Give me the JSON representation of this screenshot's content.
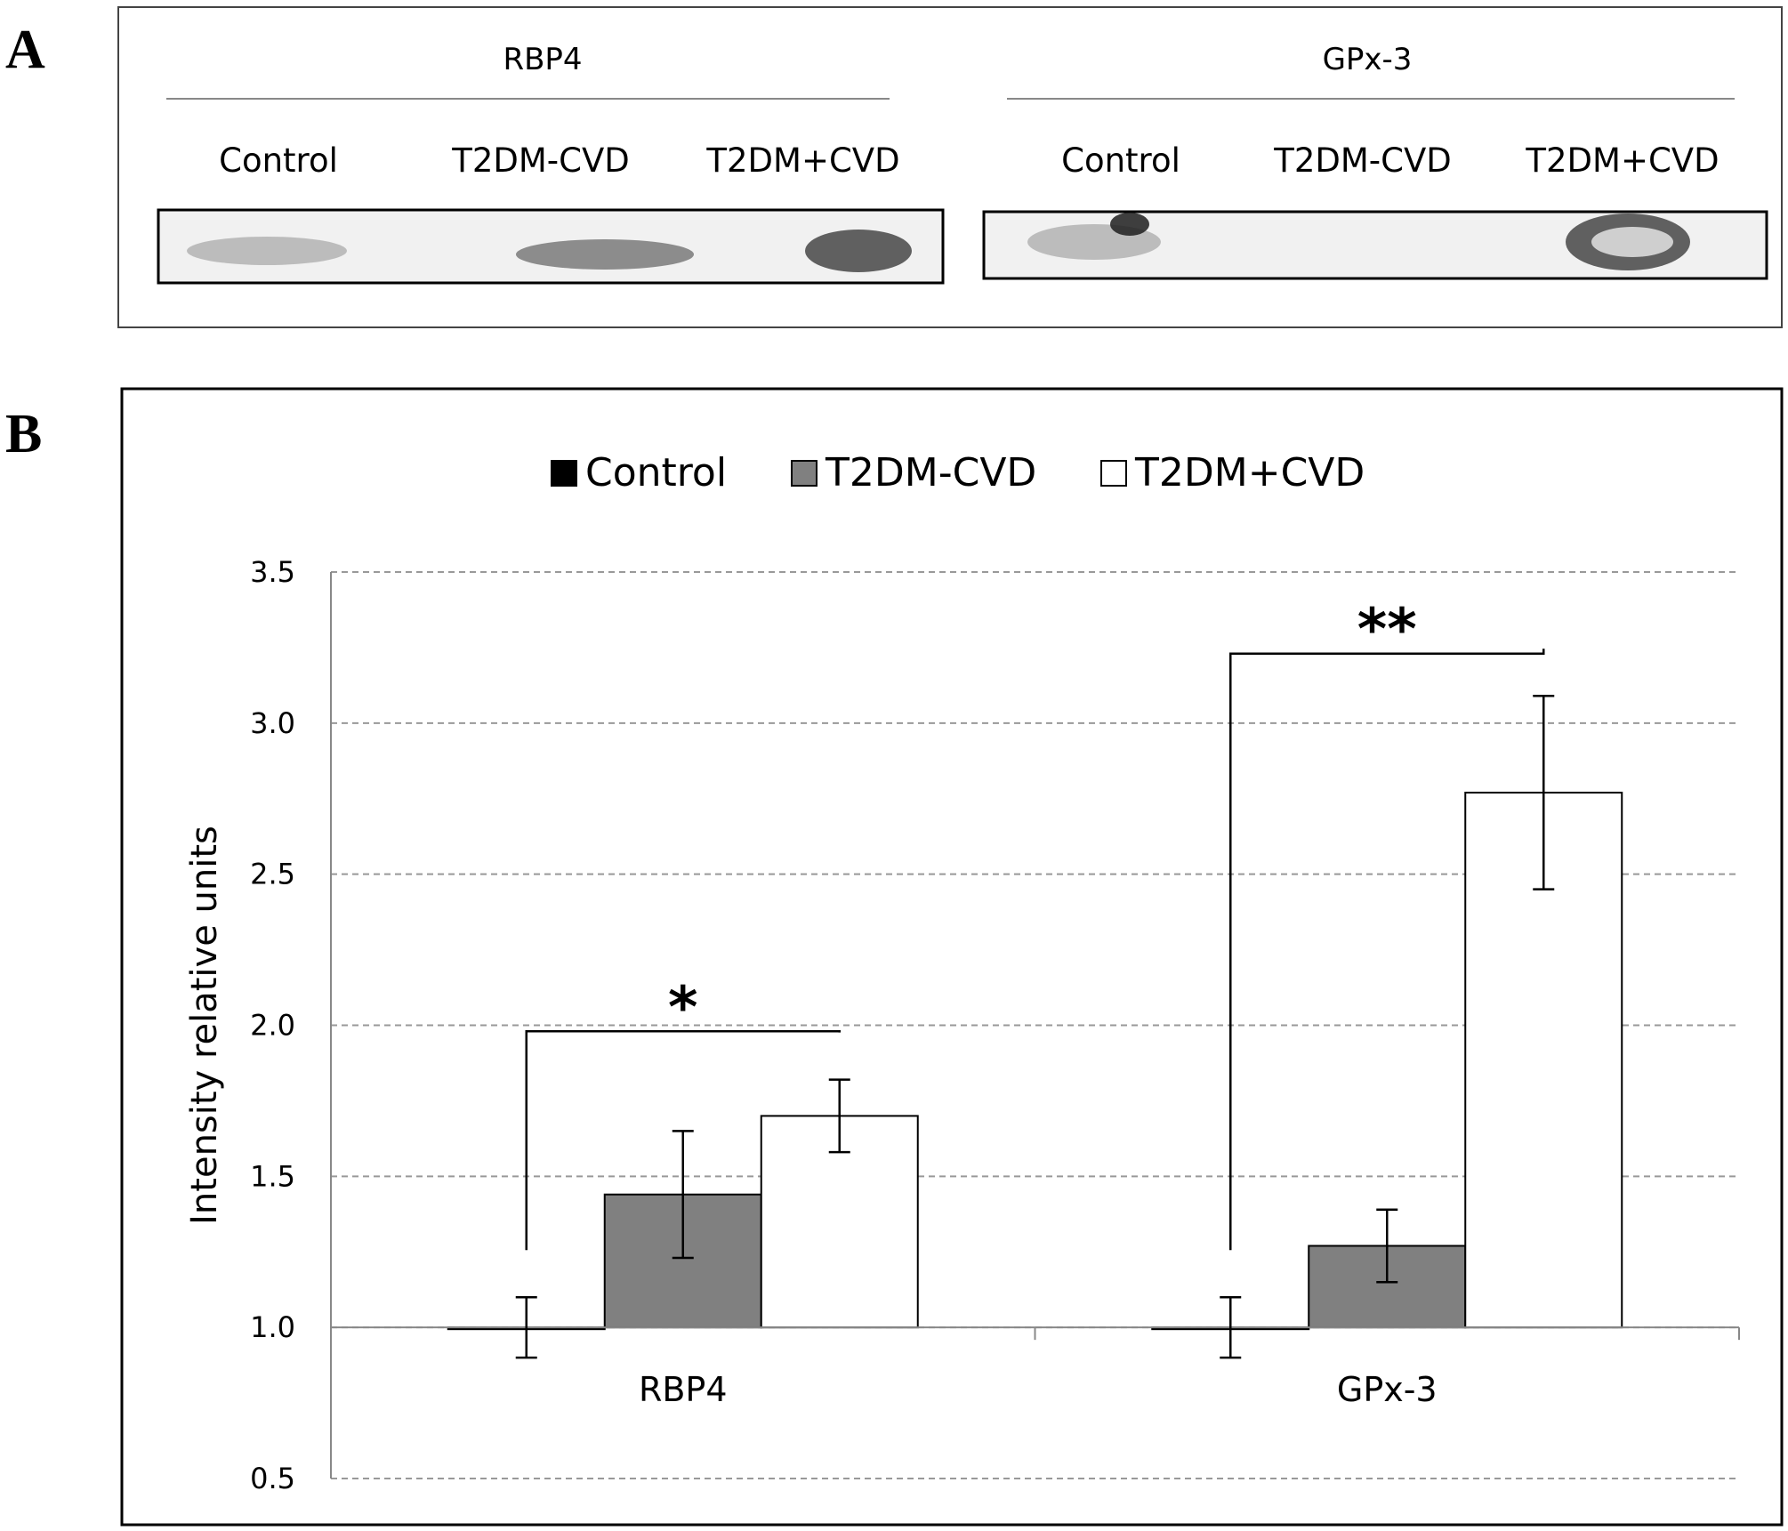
{
  "panel_a": {
    "letter": "A",
    "blots": [
      {
        "title": "RBP4",
        "lanes": [
          "Control",
          "T2DM-CVD",
          "T2DM+CVD"
        ]
      },
      {
        "title": "GPx-3",
        "lanes": [
          "Control",
          "T2DM-CVD",
          "T2DM+CVD"
        ]
      }
    ]
  },
  "panel_b": {
    "letter": "B"
  },
  "chart_data": {
    "type": "bar",
    "title": "",
    "xlabel": "",
    "ylabel": "Intensity relative units",
    "ylim": [
      0.5,
      3.5
    ],
    "yticks": [
      "0.5",
      "1.0",
      "1.5",
      "2.0",
      "2.5",
      "3.0",
      "3.5"
    ],
    "categories": [
      "RBP4",
      "GPx-3"
    ],
    "baseline": 1.0,
    "grid": true,
    "legend_position": "top",
    "series": [
      {
        "name": "Control",
        "color": "#000000",
        "values": [
          1.0,
          1.0
        ],
        "errors": [
          0.1,
          0.1
        ]
      },
      {
        "name": "T2DM-CVD",
        "color": "#808080",
        "values": [
          1.44,
          1.27
        ],
        "errors": [
          0.21,
          0.12
        ]
      },
      {
        "name": "T2DM+CVD",
        "color": "#ffffff",
        "values": [
          1.7,
          2.77
        ],
        "errors": [
          0.12,
          0.32
        ]
      }
    ],
    "annotations": [
      {
        "label": "*",
        "category": "RBP4",
        "from_series": 0,
        "to_series": 2,
        "level": 1.98
      },
      {
        "label": "**",
        "category": "GPx-3",
        "from_series": 0,
        "to_series": 2,
        "level": 3.23
      }
    ]
  }
}
